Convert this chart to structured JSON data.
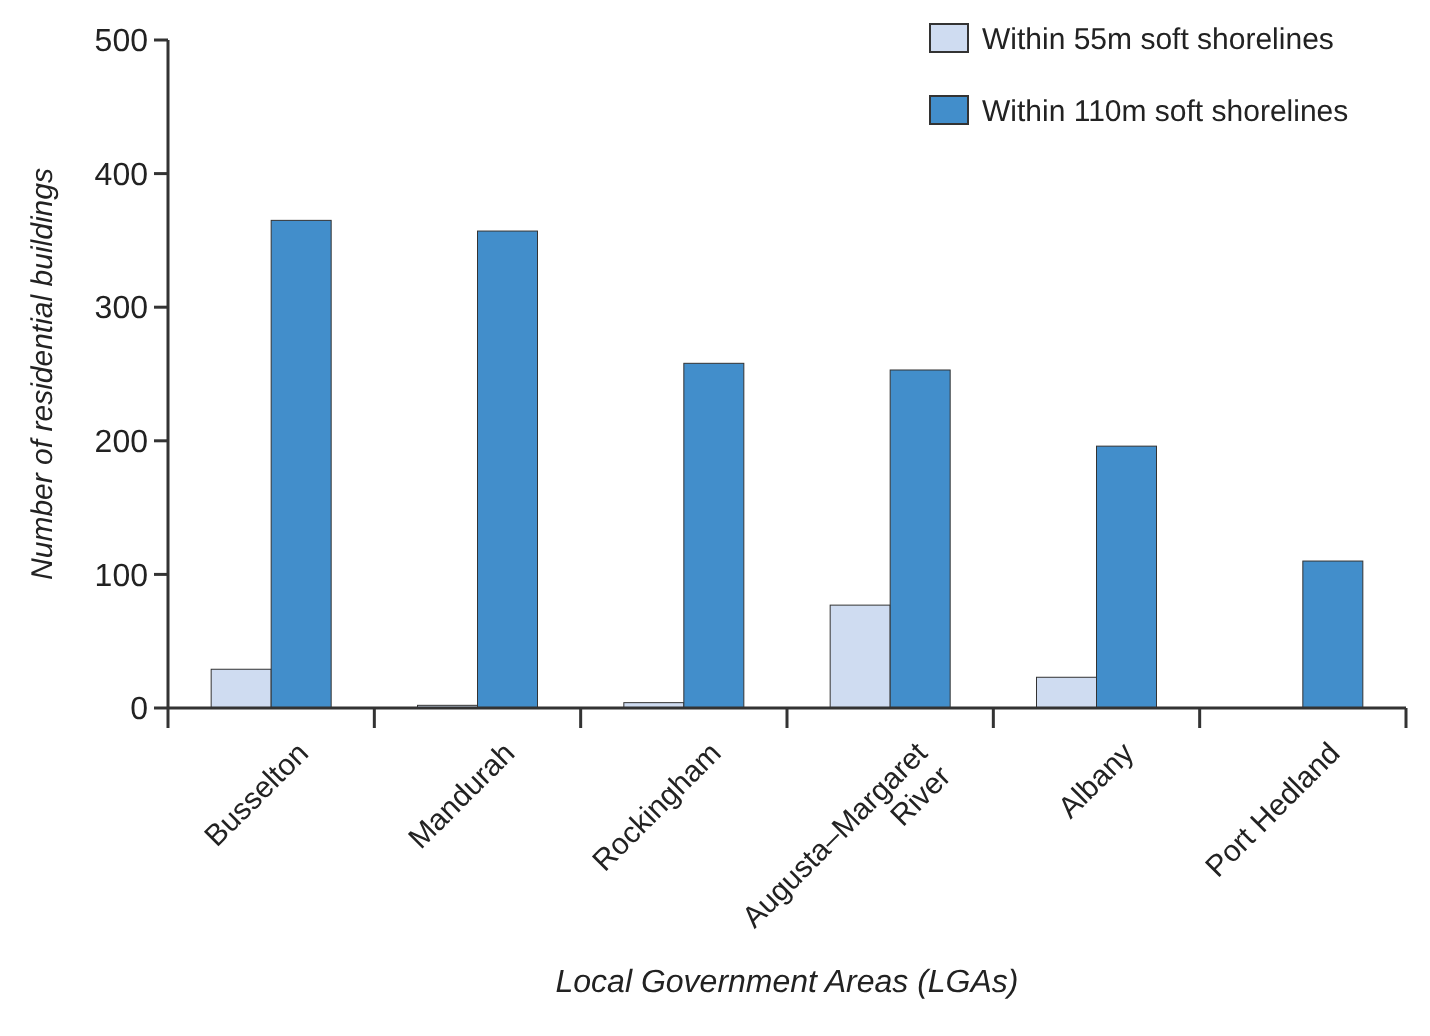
{
  "chart_data": {
    "type": "bar",
    "xlabel": "Local Government Areas (LGAs)",
    "ylabel": "Number of residential buildings",
    "categories": [
      "Busselton",
      "Mandurah",
      "Rockingham",
      "Augusta–Margaret\nRiver",
      "Albany",
      "Port Hedland"
    ],
    "series": [
      {
        "name": "Within 55m soft shorelines",
        "color": "#cfdcf1",
        "values": [
          29,
          2,
          4,
          77,
          23,
          null
        ]
      },
      {
        "name": "Within 110m soft shorelines",
        "color": "#428ecb",
        "values": [
          365,
          357,
          258,
          253,
          196,
          110
        ]
      }
    ],
    "ylim": [
      0,
      500
    ],
    "yticks": [
      0,
      100,
      200,
      300,
      400,
      500
    ],
    "legend": "top right"
  }
}
